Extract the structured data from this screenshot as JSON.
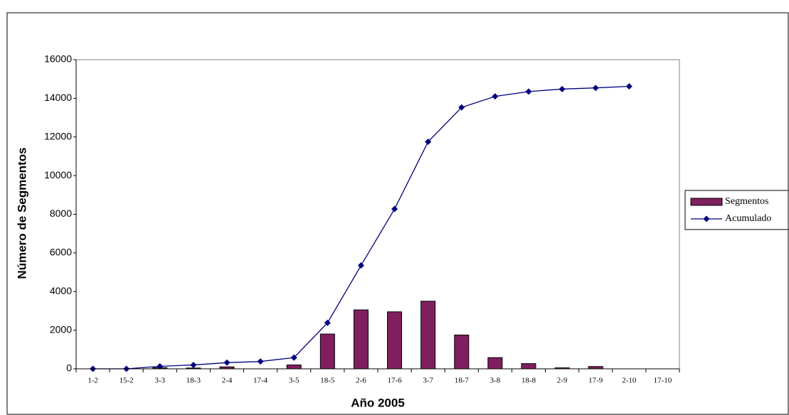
{
  "chart_data": {
    "type": "bar-line",
    "xlabel": "Año 2005",
    "ylabel": "Número de Segmentos",
    "categories": [
      "1-2",
      "15-2",
      "3-3",
      "18-3",
      "2-4",
      "17-4",
      "3-5",
      "18-5",
      "2-6",
      "17-6",
      "3-7",
      "18-7",
      "3-8",
      "18-8",
      "2-9",
      "17-9",
      "2-10",
      "17-10"
    ],
    "series": [
      {
        "name": "Segmentos",
        "type": "bar",
        "color": "#7f1f5f",
        "values": [
          0,
          0,
          60,
          40,
          100,
          0,
          200,
          1800,
          3050,
          2950,
          3500,
          1750,
          580,
          270,
          50,
          120,
          0,
          null
        ]
      },
      {
        "name": "Acumulado",
        "type": "line",
        "color": "#000080",
        "values": [
          0,
          0,
          130,
          200,
          320,
          380,
          580,
          2380,
          5350,
          8270,
          11750,
          13530,
          14100,
          14350,
          14480,
          14540,
          14620,
          null
        ]
      }
    ],
    "ylim": [
      0,
      16000
    ],
    "yticks": [
      0,
      2000,
      4000,
      6000,
      8000,
      10000,
      12000,
      14000,
      16000
    ],
    "legend": "right"
  }
}
